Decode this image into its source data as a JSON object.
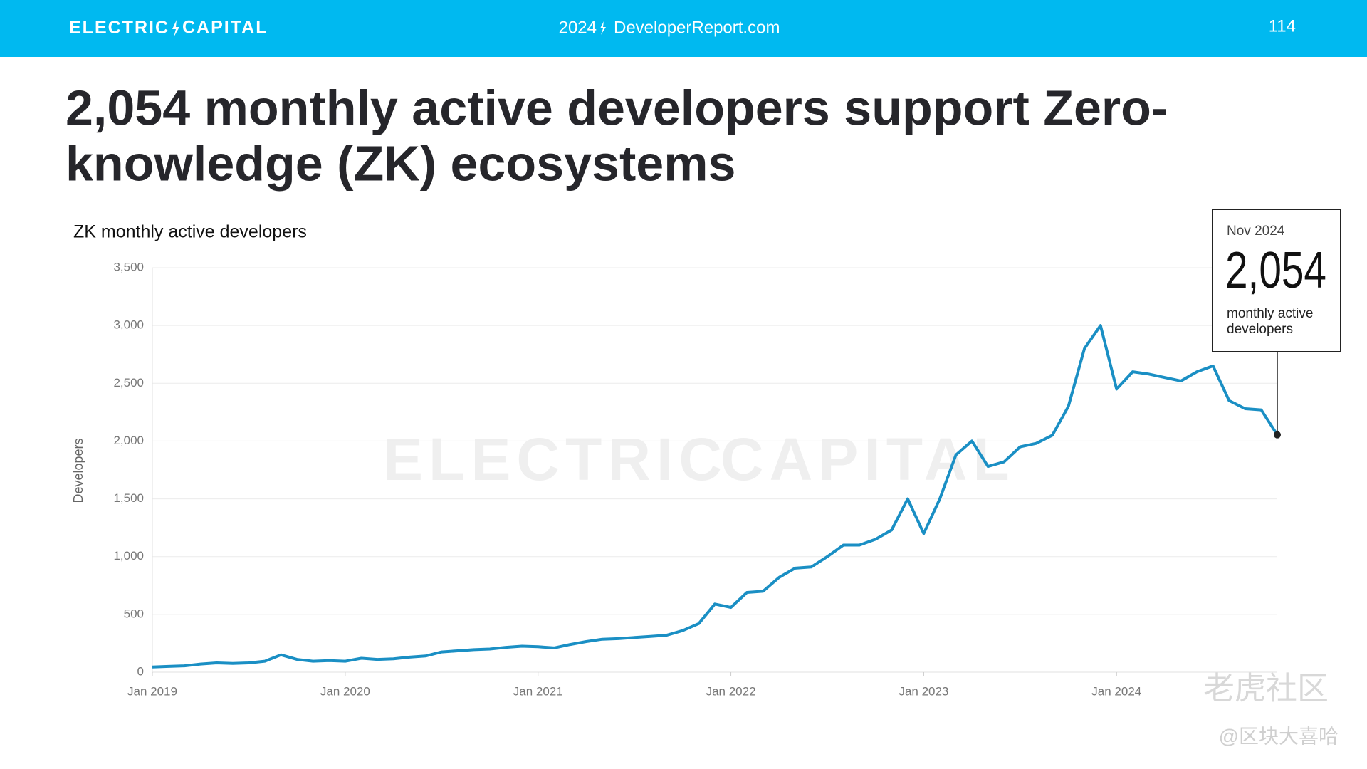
{
  "header": {
    "logo_left": "ELECTRIC",
    "logo_right": "CAPITAL",
    "url_left": "2024",
    "url_right": "DeveloperReport.com",
    "page": "114"
  },
  "title": [
    "2,054 monthly active developers support Zero-",
    "knowledge (ZK) ecosystems"
  ],
  "chart_data": {
    "type": "line",
    "subtitle": "ZK monthly active developers",
    "y_label": "Developers",
    "color": "#1a8fc4",
    "grid": true,
    "x": [
      "2019-01",
      "2019-02",
      "2019-03",
      "2019-04",
      "2019-05",
      "2019-06",
      "2019-07",
      "2019-08",
      "2019-09",
      "2019-10",
      "2019-11",
      "2019-12",
      "2020-01",
      "2020-02",
      "2020-03",
      "2020-04",
      "2020-05",
      "2020-06",
      "2020-07",
      "2020-08",
      "2020-09",
      "2020-10",
      "2020-11",
      "2020-12",
      "2021-01",
      "2021-02",
      "2021-03",
      "2021-04",
      "2021-05",
      "2021-06",
      "2021-07",
      "2021-08",
      "2021-09",
      "2021-10",
      "2021-11",
      "2021-12",
      "2022-01",
      "2022-02",
      "2022-03",
      "2022-04",
      "2022-05",
      "2022-06",
      "2022-07",
      "2022-08",
      "2022-09",
      "2022-10",
      "2022-11",
      "2022-12",
      "2023-01",
      "2023-02",
      "2023-03",
      "2023-04",
      "2023-05",
      "2023-06",
      "2023-07",
      "2023-08",
      "2023-09",
      "2023-10",
      "2023-11",
      "2023-12",
      "2024-01",
      "2024-02",
      "2024-03",
      "2024-04",
      "2024-05",
      "2024-06",
      "2024-07",
      "2024-08",
      "2024-09",
      "2024-10",
      "2024-11"
    ],
    "values": [
      45,
      50,
      55,
      70,
      80,
      75,
      80,
      95,
      150,
      110,
      95,
      100,
      95,
      120,
      110,
      115,
      130,
      140,
      175,
      185,
      195,
      200,
      215,
      225,
      220,
      210,
      240,
      265,
      285,
      290,
      300,
      310,
      320,
      360,
      420,
      590,
      560,
      690,
      700,
      820,
      900,
      910,
      1000,
      1100,
      1100,
      1150,
      1230,
      1500,
      1200,
      1500,
      1880,
      2000,
      1780,
      1820,
      1950,
      1980,
      2050,
      2300,
      2800,
      3000,
      2450,
      2600,
      2580,
      2550,
      2520,
      2600,
      2650,
      2350,
      2280,
      2270,
      2054
    ],
    "xlim": [
      "2019-01",
      "2024-11"
    ],
    "xticks": [
      {
        "value": "2019-01",
        "label": "Jan 2019"
      },
      {
        "value": "2020-01",
        "label": "Jan 2020"
      },
      {
        "value": "2021-01",
        "label": "Jan 2021"
      },
      {
        "value": "2022-01",
        "label": "Jan 2022"
      },
      {
        "value": "2023-01",
        "label": "Jan 2023"
      },
      {
        "value": "2024-01",
        "label": "Jan 2024"
      }
    ],
    "ylim": [
      0,
      3500
    ],
    "yticks": [
      0,
      {
        "value": 500,
        "label": "500"
      },
      {
        "value": 1000,
        "label": "1,000"
      },
      {
        "value": 1500,
        "label": "1,500"
      },
      {
        "value": 2000,
        "label": "2,000"
      },
      {
        "value": 2500,
        "label": "2,500"
      },
      {
        "value": 3000,
        "label": "3,000"
      },
      {
        "value": 3500,
        "label": "3,500"
      }
    ],
    "annotation": {
      "date": "Nov 2024",
      "value_label": "2,054",
      "note": [
        "monthly active",
        "developers"
      ]
    }
  },
  "watermark": [
    "老虎社区",
    "@区块大喜哈"
  ]
}
